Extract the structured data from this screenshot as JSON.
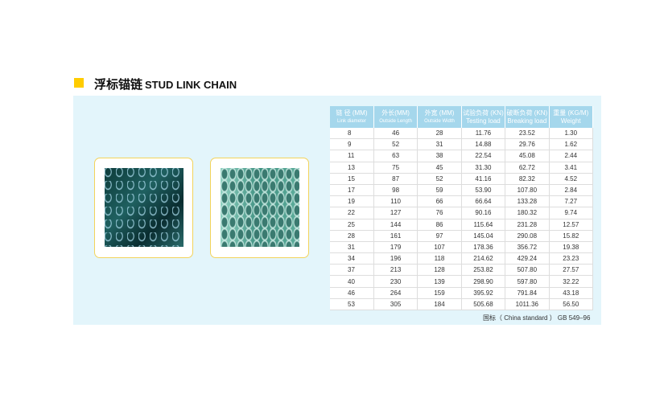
{
  "title": {
    "cn": "浮标锚链",
    "en": "STUD LINK CHAIN"
  },
  "colors": {
    "accent": "#ffcc00",
    "panel": "#e3f5fb",
    "header": "#a5d7ec"
  },
  "images": [
    {
      "name": "chain-photo-dark"
    },
    {
      "name": "chain-photo-light"
    }
  ],
  "table": {
    "headers": [
      {
        "cn": "链 径 (MM)",
        "en": "Link diameter"
      },
      {
        "cn": "外长(MM)",
        "en": "Outside Length"
      },
      {
        "cn": "外宽 (MM)",
        "en": "Outside Width"
      },
      {
        "cn": "试验负荷 (KN)",
        "en": "Testing load"
      },
      {
        "cn": "破断负荷 (KN)",
        "en": "Breaking load"
      },
      {
        "cn": "重量 (KG/M)",
        "en": "Weight"
      }
    ],
    "rows": [
      [
        "8",
        "46",
        "28",
        "11.76",
        "23.52",
        "1.30"
      ],
      [
        "9",
        "52",
        "31",
        "14.88",
        "29.76",
        "1.62"
      ],
      [
        "11",
        "63",
        "38",
        "22.54",
        "45.08",
        "2.44"
      ],
      [
        "13",
        "75",
        "45",
        "31.30",
        "62.72",
        "3.41"
      ],
      [
        "15",
        "87",
        "52",
        "41.16",
        "82.32",
        "4.52"
      ],
      [
        "17",
        "98",
        "59",
        "53.90",
        "107.80",
        "2.84"
      ],
      [
        "19",
        "110",
        "66",
        "66.64",
        "133.28",
        "7.27"
      ],
      [
        "22",
        "127",
        "76",
        "90.16",
        "180.32",
        "9.74"
      ],
      [
        "25",
        "144",
        "86",
        "115.64",
        "231.28",
        "12.57"
      ],
      [
        "28",
        "161",
        "97",
        "145.04",
        "290.08",
        "15.82"
      ],
      [
        "31",
        "179",
        "107",
        "178.36",
        "356.72",
        "19.38"
      ],
      [
        "34",
        "196",
        "118",
        "214.62",
        "429.24",
        "23.23"
      ],
      [
        "37",
        "213",
        "128",
        "253.82",
        "507.80",
        "27.57"
      ],
      [
        "40",
        "230",
        "139",
        "298.90",
        "597.80",
        "32.22"
      ],
      [
        "46",
        "264",
        "159",
        "395.92",
        "791.84",
        "43.18"
      ],
      [
        "53",
        "305",
        "184",
        "505.68",
        "1011.36",
        "56.50"
      ]
    ]
  },
  "footer": "国标（ China standard ）  GB 549–96"
}
